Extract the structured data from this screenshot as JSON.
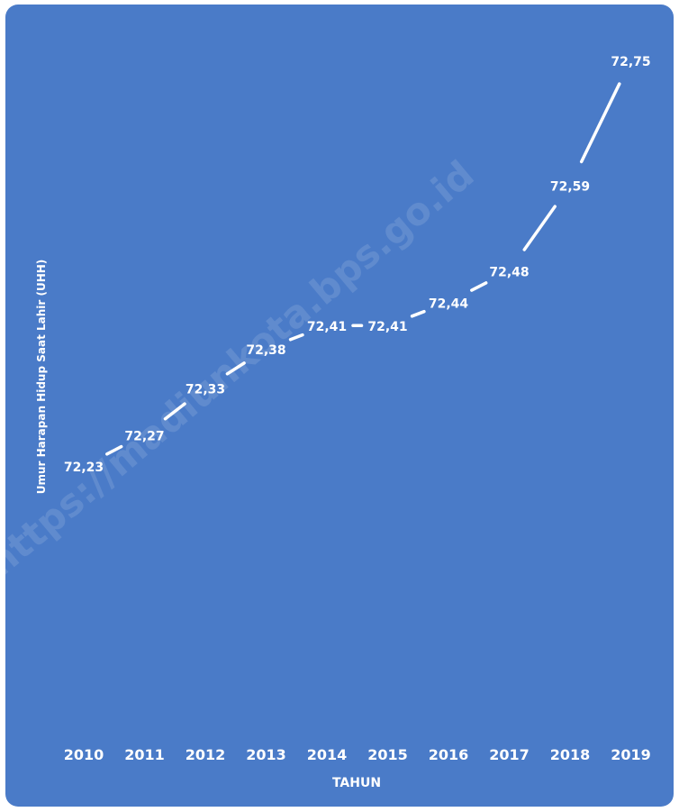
{
  "chart_data": {
    "type": "line",
    "title": "",
    "xlabel": "TAHUN",
    "ylabel": "Umur Harapan Hidup Saat Lahir (UHH)",
    "categories": [
      "2010",
      "2011",
      "2012",
      "2013",
      "2014",
      "2015",
      "2016",
      "2017",
      "2018",
      "2019"
    ],
    "series": [
      {
        "values": [
          72.23,
          72.27,
          72.33,
          72.38,
          72.41,
          72.41,
          72.44,
          72.48,
          72.59,
          72.75
        ],
        "value_labels": [
          "72,23",
          "72,27",
          "72,33",
          "72,38",
          "72,41",
          "72,41",
          "72,44",
          "72,48",
          "72,59",
          "72,75"
        ]
      }
    ],
    "drop_lines": true,
    "grid": false,
    "legend": "none",
    "watermark": "https://madiunkota.bps.go.id",
    "colors": {
      "background": "#4a7bc8",
      "line": "#ffffff",
      "text": "#ffffff"
    }
  }
}
